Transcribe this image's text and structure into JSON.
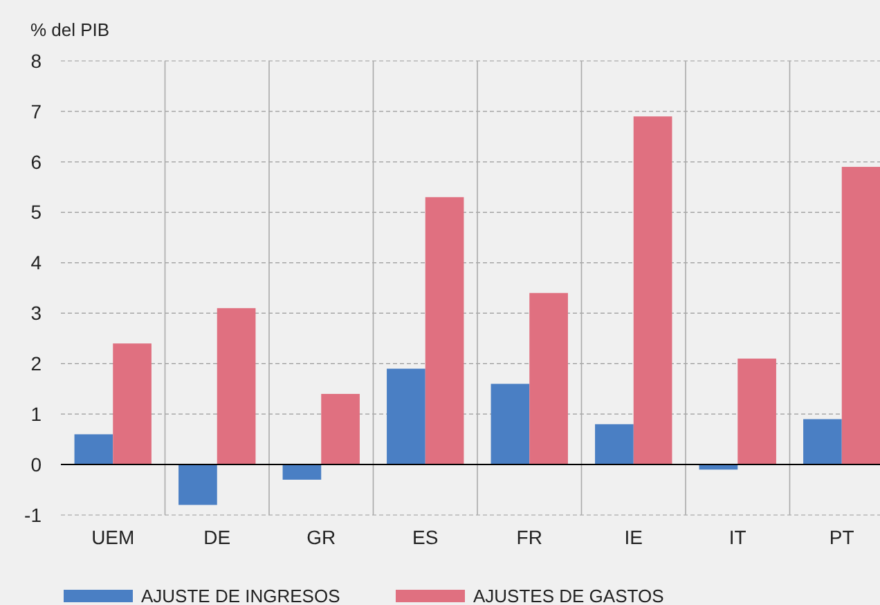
{
  "chart_data": {
    "type": "bar",
    "ylabel": "% del PIB",
    "categories": [
      "UEM",
      "DE",
      "GR",
      "ES",
      "FR",
      "IE",
      "IT",
      "PT"
    ],
    "series": [
      {
        "name": "AJUSTE DE INGRESOS",
        "color": "#4a7fc4",
        "values": [
          0.6,
          -0.8,
          -0.3,
          1.9,
          1.6,
          0.8,
          -0.1,
          0.9
        ]
      },
      {
        "name": "AJUSTES DE GASTOS",
        "color": "#e07080",
        "values": [
          2.4,
          3.1,
          1.4,
          5.3,
          3.4,
          6.9,
          2.1,
          5.9
        ]
      }
    ],
    "ylim": [
      -1,
      8
    ],
    "yticks": [
      -1,
      0,
      1,
      2,
      3,
      4,
      5,
      6,
      7,
      8
    ],
    "grid": true,
    "legend": "bottom"
  }
}
